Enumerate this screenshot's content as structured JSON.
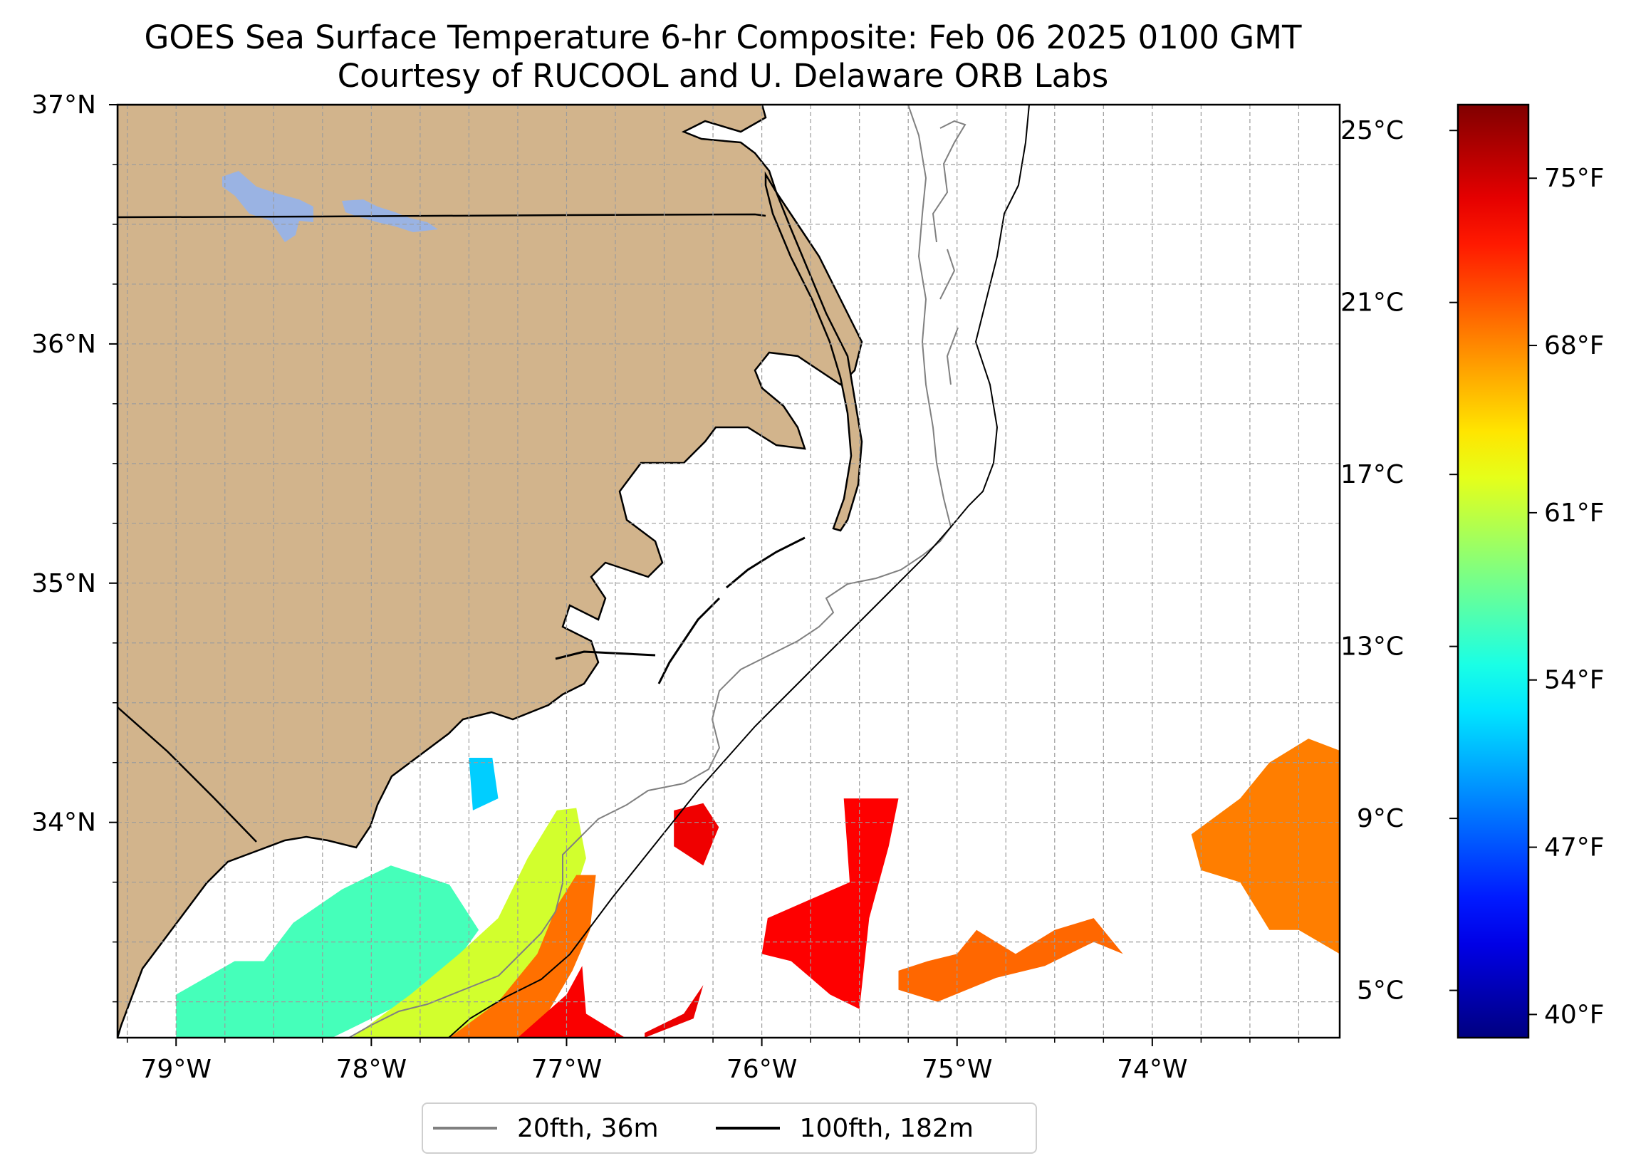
{
  "title": {
    "line1": "GOES Sea Surface Temperature 6-hr Composite: Feb 06 2025 0100 GMT",
    "line2": "Courtesy of RUCOOL and U. Delaware ORB Labs"
  },
  "map": {
    "lon_range": [
      -79.3,
      -73.04
    ],
    "lat_range": [
      33.1,
      37.0
    ],
    "lon_ticks": [
      {
        "value": -79,
        "label": "79°W"
      },
      {
        "value": -78,
        "label": "78°W"
      },
      {
        "value": -77,
        "label": "77°W"
      },
      {
        "value": -76,
        "label": "76°W"
      },
      {
        "value": -75,
        "label": "75°W"
      },
      {
        "value": -74,
        "label": "74°W"
      }
    ],
    "lat_ticks": [
      {
        "value": 37,
        "label": "37°N"
      },
      {
        "value": 36,
        "label": "36°N"
      },
      {
        "value": 35,
        "label": "35°N"
      },
      {
        "value": 34,
        "label": "34°N"
      }
    ],
    "gridlines": true,
    "colors": {
      "land": "#d2b48c",
      "ocean_nodata": "#ffffff",
      "lake": "#9ab3e3",
      "grid": "#9c9c9c",
      "coast": "#000000"
    }
  },
  "isobaths": [
    {
      "label": "20fth, 36m",
      "color": "#808080"
    },
    {
      "label": "100fth, 182m",
      "color": "#000000"
    }
  ],
  "colorbar": {
    "colormap": "jet",
    "range_c": [
      3.9,
      25.6
    ],
    "celsius_ticks": [
      {
        "value": 5,
        "label": "5°C"
      },
      {
        "value": 9,
        "label": "9°C"
      },
      {
        "value": 13,
        "label": "13°C"
      },
      {
        "value": 17,
        "label": "17°C"
      },
      {
        "value": 21,
        "label": "21°C"
      },
      {
        "value": 25,
        "label": "25°C"
      }
    ],
    "fahrenheit_ticks": [
      {
        "value_c": 4.44,
        "label": "40°F"
      },
      {
        "value_c": 8.33,
        "label": "47°F"
      },
      {
        "value_c": 12.22,
        "label": "54°F"
      },
      {
        "value_c": 16.11,
        "label": "61°F"
      },
      {
        "value_c": 20.0,
        "label": "68°F"
      },
      {
        "value_c": 23.89,
        "label": "75°F"
      }
    ]
  },
  "sst_patches": [
    {
      "name": "nearshore-blue",
      "temp_c": 11.0,
      "points": [
        [
          -77.5,
          34.27
        ],
        [
          -77.38,
          34.27
        ],
        [
          -77.35,
          34.1
        ],
        [
          -77.48,
          34.05
        ]
      ]
    },
    {
      "name": "inner-shelf-band",
      "temp_c": 13.5,
      "points": [
        [
          -79.0,
          33.15
        ],
        [
          -79.0,
          33.28
        ],
        [
          -78.7,
          33.42
        ],
        [
          -78.55,
          33.42
        ],
        [
          -78.4,
          33.58
        ],
        [
          -78.15,
          33.72
        ],
        [
          -77.9,
          33.82
        ],
        [
          -77.6,
          33.74
        ],
        [
          -77.45,
          33.55
        ],
        [
          -77.6,
          33.38
        ],
        [
          -77.9,
          33.22
        ],
        [
          -78.2,
          33.1
        ],
        [
          -79.0,
          33.1
        ]
      ]
    },
    {
      "name": "mid-shelf-band",
      "temp_c": 16.5,
      "points": [
        [
          -78.1,
          33.1
        ],
        [
          -77.8,
          33.28
        ],
        [
          -77.55,
          33.45
        ],
        [
          -77.35,
          33.6
        ],
        [
          -77.2,
          33.85
        ],
        [
          -77.05,
          34.05
        ],
        [
          -76.95,
          34.06
        ],
        [
          -76.9,
          33.85
        ],
        [
          -77.0,
          33.6
        ],
        [
          -77.1,
          33.4
        ],
        [
          -77.25,
          33.2
        ],
        [
          -77.4,
          33.1
        ]
      ]
    },
    {
      "name": "outer-shelf-band",
      "temp_c": 20.5,
      "points": [
        [
          -77.6,
          33.1
        ],
        [
          -77.35,
          33.25
        ],
        [
          -77.15,
          33.45
        ],
        [
          -77.05,
          33.65
        ],
        [
          -76.95,
          33.78
        ],
        [
          -76.85,
          33.78
        ],
        [
          -76.88,
          33.55
        ],
        [
          -76.97,
          33.38
        ],
        [
          -77.1,
          33.2
        ],
        [
          -77.25,
          33.1
        ]
      ]
    },
    {
      "name": "shelf-break-red",
      "temp_c": 23.0,
      "points": [
        [
          -77.25,
          33.1
        ],
        [
          -77.0,
          33.28
        ],
        [
          -76.92,
          33.4
        ],
        [
          -76.9,
          33.2
        ],
        [
          -76.7,
          33.1
        ]
      ]
    },
    {
      "name": "offshore-red-a",
      "temp_c": 23.3,
      "points": [
        [
          -76.6,
          33.1
        ],
        [
          -76.35,
          33.18
        ],
        [
          -76.3,
          33.32
        ],
        [
          -76.4,
          33.2
        ],
        [
          -76.6,
          33.12
        ]
      ]
    },
    {
      "name": "offshore-red-b",
      "temp_c": 23.2,
      "points": [
        [
          -76.45,
          34.05
        ],
        [
          -76.3,
          34.08
        ],
        [
          -76.22,
          33.98
        ],
        [
          -76.3,
          33.82
        ],
        [
          -76.45,
          33.9
        ]
      ]
    },
    {
      "name": "offshore-red-c",
      "temp_c": 22.9,
      "points": [
        [
          -75.97,
          33.6
        ],
        [
          -75.55,
          33.75
        ],
        [
          -75.58,
          34.1
        ],
        [
          -75.3,
          34.1
        ],
        [
          -75.35,
          33.9
        ],
        [
          -75.45,
          33.6
        ],
        [
          -75.5,
          33.22
        ],
        [
          -75.65,
          33.28
        ],
        [
          -75.85,
          33.42
        ],
        [
          -76.0,
          33.45
        ]
      ]
    },
    {
      "name": "offshore-orange-a",
      "temp_c": 20.7,
      "points": [
        [
          -75.3,
          33.3
        ],
        [
          -75.1,
          33.25
        ],
        [
          -74.8,
          33.35
        ],
        [
          -74.55,
          33.4
        ],
        [
          -74.3,
          33.5
        ],
        [
          -74.15,
          33.45
        ],
        [
          -74.3,
          33.6
        ],
        [
          -74.5,
          33.55
        ],
        [
          -74.7,
          33.45
        ],
        [
          -74.9,
          33.55
        ],
        [
          -75.0,
          33.45
        ],
        [
          -75.15,
          33.42
        ],
        [
          -75.3,
          33.38
        ]
      ]
    },
    {
      "name": "offshore-orange-b",
      "temp_c": 20.2,
      "points": [
        [
          -73.8,
          33.95
        ],
        [
          -73.55,
          34.1
        ],
        [
          -73.4,
          34.25
        ],
        [
          -73.2,
          34.35
        ],
        [
          -73.04,
          34.3
        ],
        [
          -73.04,
          33.45
        ],
        [
          -73.25,
          33.55
        ],
        [
          -73.4,
          33.55
        ],
        [
          -73.55,
          33.75
        ],
        [
          -73.75,
          33.8
        ]
      ]
    }
  ]
}
